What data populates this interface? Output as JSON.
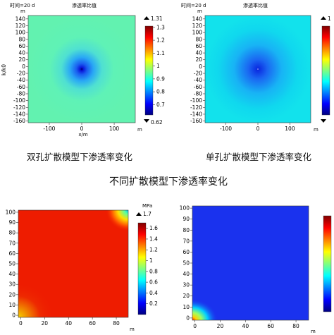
{
  "chart_data": [
    {
      "type": "heatmap",
      "time_label": "时间=20 d",
      "title": "渗透率比值",
      "ylabel": "k/k0",
      "xlabel": "x/m",
      "x_unit": "m",
      "y_unit": "m",
      "xlim": [
        -165,
        165
      ],
      "ylim": [
        -165,
        150
      ],
      "xticks": [
        "-100",
        "0",
        "100"
      ],
      "yticks": [
        "140",
        "120",
        "100",
        "80",
        "60",
        "40",
        "20",
        "0",
        "-20",
        "-40",
        "-60",
        "-80",
        "-100",
        "-120",
        "-140",
        "-160"
      ],
      "colorbar": {
        "max_marker": "1.31",
        "min_marker": "0.62",
        "ticks": [
          "1.3",
          "1.2",
          "1.1",
          "1",
          "0.9",
          "0.8",
          "0.7"
        ],
        "range": [
          0.62,
          1.31
        ]
      }
    },
    {
      "type": "heatmap",
      "time_label": "时间=20 d",
      "title": "渗透率比值",
      "x_unit": "m",
      "y_unit": "m",
      "xlim": [
        -165,
        165
      ],
      "ylim": [
        -165,
        150
      ],
      "xticks": [
        "-100",
        "0",
        "100"
      ],
      "yticks": [
        "140",
        "120",
        "100",
        "80",
        "60",
        "40",
        "20",
        "0",
        "-20",
        "-40",
        "-60",
        "-80",
        "-100",
        "-120",
        "-140",
        "-160"
      ],
      "colorbar": {
        "max_marker": "1"
      }
    },
    {
      "type": "heatmap",
      "unit": "MPa",
      "x_unit": "m",
      "xlim": [
        -2,
        90
      ],
      "ylim": [
        -2,
        102
      ],
      "xticks": [
        "0",
        "20",
        "40",
        "60",
        "80"
      ],
      "yticks": [
        "100",
        "90",
        "80",
        "70",
        "60",
        "50",
        "40",
        "30",
        "20",
        "10",
        "0"
      ],
      "colorbar": {
        "max_marker": "1.7",
        "ticks": [
          "1.6",
          "1.4",
          "1.2",
          "1",
          "0.8",
          "0.6",
          "0.4",
          "0.2"
        ],
        "range": [
          0,
          1.7
        ]
      }
    },
    {
      "type": "heatmap",
      "x_unit": "m",
      "xlim": [
        -2,
        90
      ],
      "ylim": [
        -2,
        102
      ],
      "xticks": [
        "0",
        "20",
        "40",
        "60",
        "80"
      ],
      "yticks": [
        "100",
        "90",
        "80",
        "70",
        "60",
        "50",
        "40",
        "30",
        "20",
        "10",
        "0"
      ]
    }
  ],
  "captions": {
    "left": "双孔扩散模型下渗透率变化",
    "right": "单孔扩散模型下渗透率变化",
    "main": "不同扩散模型下渗透率变化"
  }
}
